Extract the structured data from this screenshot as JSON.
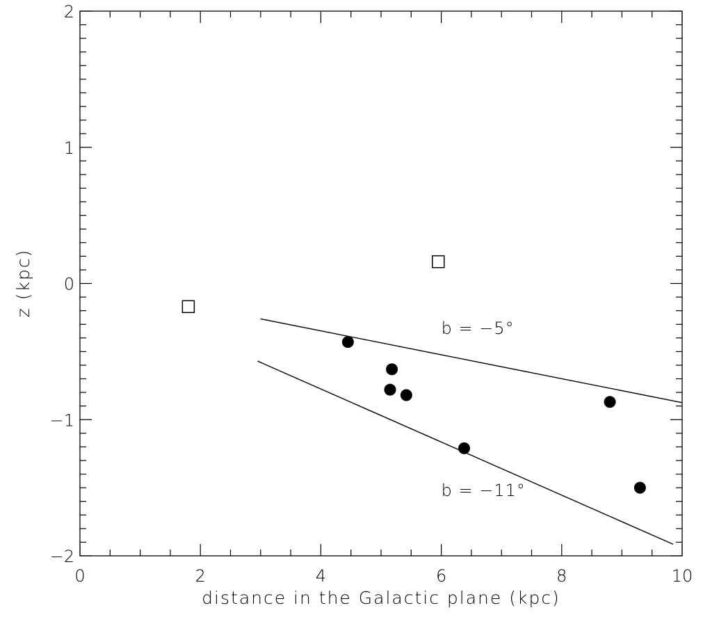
{
  "chart_data": {
    "type": "scatter",
    "title": "",
    "xlabel": "distance in the Galactic plane (kpc)",
    "ylabel": "z (kpc)",
    "xlim": [
      0,
      10
    ],
    "ylim": [
      -2,
      2
    ],
    "x_major_ticks": [
      0,
      2,
      4,
      6,
      8,
      10
    ],
    "x_tick_labels": [
      "0",
      "2",
      "4",
      "6",
      "8",
      "10"
    ],
    "y_major_ticks": [
      -2,
      -1,
      0,
      1,
      2
    ],
    "y_tick_labels": [
      "−2",
      "−1",
      "0",
      "1",
      "2"
    ],
    "x_minor_step": 0.5,
    "y_minor_step": 0.1,
    "grid": false,
    "series": [
      {
        "marker": "open-square",
        "color": "#000000",
        "points": [
          {
            "x": 1.8,
            "y": -0.17
          },
          {
            "x": 5.95,
            "y": 0.16
          }
        ]
      },
      {
        "marker": "filled-circle",
        "color": "#000000",
        "points": [
          {
            "x": 4.45,
            "y": -0.43
          },
          {
            "x": 5.18,
            "y": -0.63
          },
          {
            "x": 5.15,
            "y": -0.78
          },
          {
            "x": 5.42,
            "y": -0.82
          },
          {
            "x": 6.38,
            "y": -1.21
          },
          {
            "x": 8.8,
            "y": -0.87
          },
          {
            "x": 9.3,
            "y": -1.5
          }
        ]
      }
    ],
    "lines": [
      {
        "x": [
          3.0,
          10.0
        ],
        "y": [
          -0.26,
          -0.875
        ],
        "label": "b = −5°",
        "label_at": {
          "x": 6.0,
          "y": -0.37
        }
      },
      {
        "x": [
          2.95,
          9.85
        ],
        "y": [
          -0.57,
          -1.915
        ],
        "label": "b = −11°",
        "label_at": {
          "x": 6.0,
          "y": -1.56
        }
      }
    ]
  }
}
